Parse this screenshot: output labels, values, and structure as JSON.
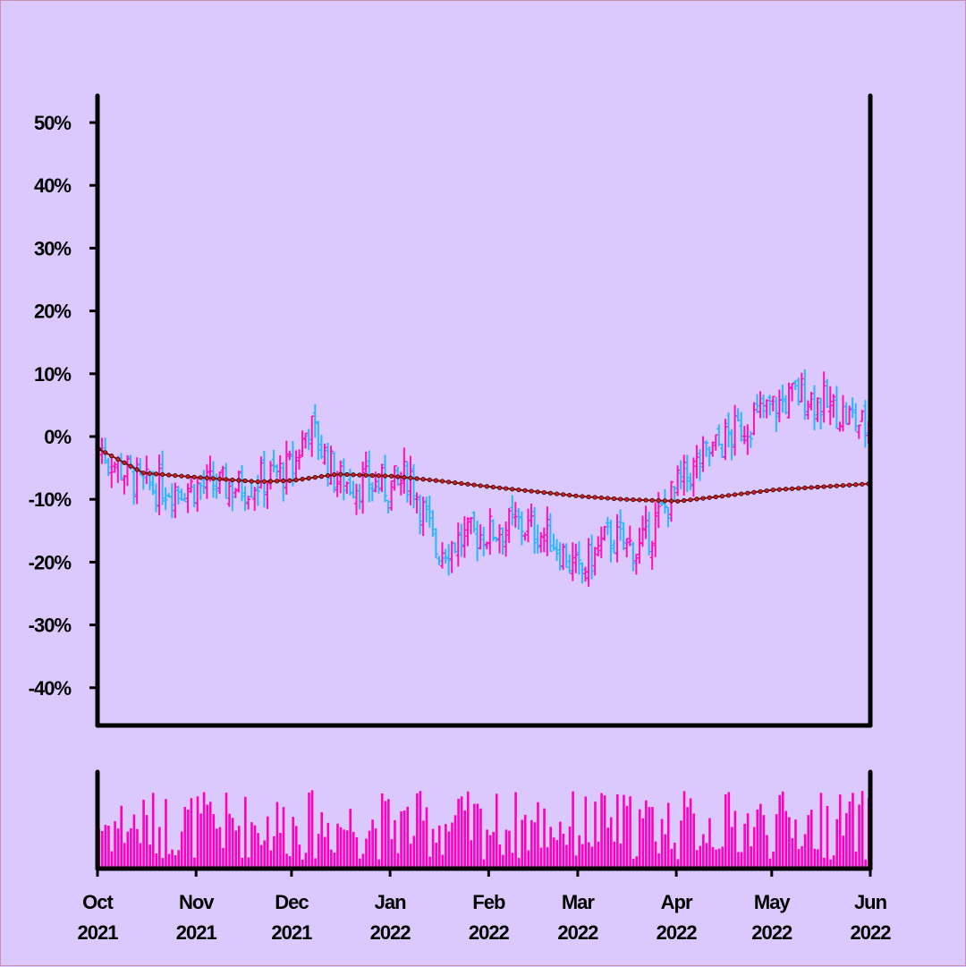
{
  "chart_data": {
    "type": "ohlc",
    "title": "",
    "xlabel": "",
    "ylabel": "",
    "ylim": [
      -45,
      55
    ],
    "y_ticks": [
      "50%",
      "40%",
      "30%",
      "20%",
      "10%",
      "0%",
      "-10%",
      "-20%",
      "-30%",
      "-40%"
    ],
    "y_tick_values": [
      50,
      40,
      30,
      20,
      10,
      0,
      -10,
      -20,
      -30,
      -40
    ],
    "x_range": [
      "2021-10-01",
      "2022-06-01"
    ],
    "x_tick_labels": [
      {
        "month": "Oct",
        "year": "2021"
      },
      {
        "month": "Nov",
        "year": "2021"
      },
      {
        "month": "Dec",
        "year": "2021"
      },
      {
        "month": "Jan",
        "year": "2022"
      },
      {
        "month": "Feb",
        "year": "2022"
      },
      {
        "month": "Mar",
        "year": "2022"
      },
      {
        "month": "Apr",
        "year": "2022"
      },
      {
        "month": "May",
        "year": "2022"
      },
      {
        "month": "Jun",
        "year": "2022"
      }
    ],
    "price_anchors": [
      [
        "2021-10-01",
        -2
      ],
      [
        "2021-10-15",
        -8
      ],
      [
        "2021-11-01",
        -8
      ],
      [
        "2021-11-15",
        -8
      ],
      [
        "2021-12-01",
        -5
      ],
      [
        "2021-12-06",
        2
      ],
      [
        "2021-12-15",
        -7
      ],
      [
        "2022-01-01",
        -8
      ],
      [
        "2022-01-07",
        -6
      ],
      [
        "2022-01-15",
        -18
      ],
      [
        "2022-01-25",
        -16
      ],
      [
        "2022-02-10",
        -14
      ],
      [
        "2022-02-20",
        -16
      ],
      [
        "2022-03-01",
        -22
      ],
      [
        "2022-03-10",
        -16
      ],
      [
        "2022-03-20",
        -18
      ],
      [
        "2022-04-01",
        -8
      ],
      [
        "2022-04-10",
        -3
      ],
      [
        "2022-04-25",
        3
      ],
      [
        "2022-05-10",
        7
      ],
      [
        "2022-05-25",
        3
      ],
      [
        "2022-06-01",
        1
      ]
    ],
    "moving_average_anchors": [
      [
        "2021-10-01",
        -2
      ],
      [
        "2021-10-15",
        -5.8
      ],
      [
        "2021-11-01",
        -6.5
      ],
      [
        "2021-11-20",
        -7.2
      ],
      [
        "2021-12-01",
        -7
      ],
      [
        "2021-12-15",
        -6
      ],
      [
        "2022-01-01",
        -6.3
      ],
      [
        "2022-01-15",
        -7
      ],
      [
        "2022-02-01",
        -8
      ],
      [
        "2022-03-01",
        -9.5
      ],
      [
        "2022-03-15",
        -10
      ],
      [
        "2022-04-01",
        -10.3
      ],
      [
        "2022-04-15",
        -9.5
      ],
      [
        "2022-05-01",
        -8.5
      ],
      [
        "2022-06-01",
        -7.5
      ]
    ],
    "colors": {
      "up": "#ff10b8",
      "down": "#2ab6ff",
      "moving_average_line": "#7b1020",
      "moving_average_marker": "#d02020",
      "volume": "#ff00c0",
      "axis": "#000000",
      "background": "#dbc8fc"
    }
  }
}
